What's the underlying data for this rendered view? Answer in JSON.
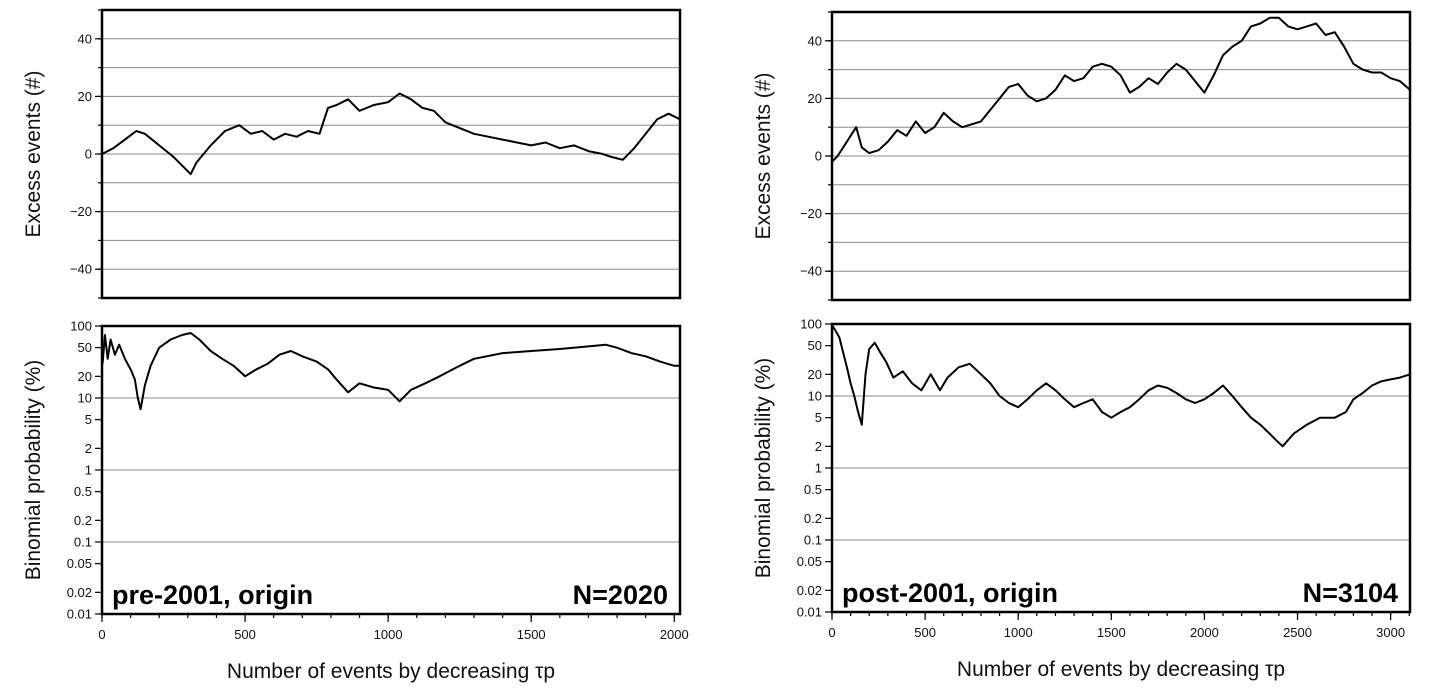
{
  "chart_data": [
    {
      "type": "line",
      "panel": "left-top",
      "ylabel": "Excess events (#)",
      "xlabel": "",
      "xlim": [
        0,
        2020
      ],
      "ylim": [
        -50,
        50
      ],
      "yticks": [
        -40,
        -20,
        0,
        20,
        40
      ],
      "yticklabels": [
        "−40",
        "−20",
        "0",
        "20",
        "40"
      ],
      "yminor_step": 10,
      "grid": true,
      "series": [
        {
          "x": [
            0,
            40,
            80,
            120,
            150,
            200,
            250,
            290,
            310,
            330,
            380,
            430,
            480,
            520,
            560,
            600,
            640,
            680,
            720,
            760,
            790,
            820,
            860,
            900,
            950,
            1000,
            1040,
            1080,
            1120,
            1160,
            1200,
            1250,
            1300,
            1350,
            1400,
            1450,
            1500,
            1550,
            1600,
            1650,
            1700,
            1750,
            1780,
            1820,
            1860,
            1900,
            1940,
            1980,
            2020
          ],
          "values": [
            0,
            2,
            5,
            8,
            7,
            3,
            -1,
            -5,
            -7,
            -3,
            3,
            8,
            10,
            7,
            8,
            5,
            7,
            6,
            8,
            7,
            16,
            17,
            19,
            15,
            17,
            18,
            21,
            19,
            16,
            15,
            11,
            9,
            7,
            6,
            5,
            4,
            3,
            4,
            2,
            3,
            1,
            0,
            -1,
            -2,
            2,
            7,
            12,
            14,
            12
          ]
        }
      ]
    },
    {
      "type": "line",
      "panel": "left-bottom",
      "ylabel": "Binomial probability (%)",
      "xlabel": "Number of events by decreasing τp",
      "xlim": [
        0,
        2020
      ],
      "ylim": [
        0.01,
        100
      ],
      "yscale": "log",
      "yticks": [
        100,
        50,
        20,
        10,
        5,
        2,
        1,
        0.5,
        0.2,
        0.1,
        0.05,
        0.02,
        0.01
      ],
      "yticklabels": [
        "100",
        "50",
        "20",
        "10",
        "5",
        "2",
        "1",
        "0.5",
        "0.2",
        "0.1",
        "0.05",
        "0.02",
        "0.01"
      ],
      "grid_at": [
        100,
        10,
        1,
        0.1,
        0.01
      ],
      "xticks": [
        0,
        500,
        1000,
        1500,
        2000
      ],
      "xticklabels": [
        "0",
        "500",
        "1000",
        "1500",
        "2000"
      ],
      "xminor_step": 100,
      "annotations": [
        "pre-2001, origin",
        "N=2020"
      ],
      "series": [
        {
          "x": [
            2,
            10,
            20,
            30,
            45,
            60,
            80,
            100,
            115,
            125,
            135,
            150,
            170,
            200,
            240,
            280,
            310,
            340,
            380,
            420,
            460,
            500,
            540,
            580,
            620,
            660,
            700,
            750,
            790,
            820,
            860,
            900,
            950,
            1000,
            1040,
            1080,
            1130,
            1180,
            1250,
            1300,
            1400,
            1500,
            1600,
            1700,
            1760,
            1800,
            1850,
            1900,
            1950,
            2000,
            2020
          ],
          "values": [
            30,
            75,
            35,
            65,
            40,
            55,
            35,
            25,
            18,
            10,
            7,
            15,
            28,
            50,
            65,
            75,
            80,
            65,
            45,
            35,
            28,
            20,
            25,
            30,
            40,
            45,
            38,
            32,
            25,
            18,
            12,
            16,
            14,
            13,
            9,
            13,
            16,
            20,
            28,
            35,
            42,
            45,
            48,
            52,
            55,
            50,
            42,
            38,
            32,
            28,
            28
          ]
        }
      ]
    },
    {
      "type": "line",
      "panel": "right-top",
      "ylabel": "Excess events (#)",
      "xlabel": "",
      "xlim": [
        0,
        3104
      ],
      "ylim": [
        -50,
        50
      ],
      "yticks": [
        -40,
        -20,
        0,
        20,
        40
      ],
      "yticklabels": [
        "−40",
        "−20",
        "0",
        "20",
        "40"
      ],
      "yminor_step": 10,
      "grid": true,
      "series": [
        {
          "x": [
            0,
            30,
            60,
            100,
            130,
            160,
            200,
            250,
            300,
            350,
            400,
            450,
            500,
            550,
            600,
            650,
            700,
            750,
            800,
            850,
            900,
            950,
            1000,
            1050,
            1100,
            1150,
            1200,
            1250,
            1300,
            1350,
            1400,
            1450,
            1500,
            1550,
            1600,
            1650,
            1700,
            1750,
            1800,
            1850,
            1900,
            1950,
            2000,
            2050,
            2100,
            2150,
            2200,
            2250,
            2300,
            2350,
            2400,
            2450,
            2500,
            2550,
            2600,
            2650,
            2700,
            2750,
            2800,
            2850,
            2900,
            2950,
            3000,
            3050,
            3104
          ],
          "values": [
            -2,
            0,
            3,
            7,
            10,
            3,
            1,
            2,
            5,
            9,
            7,
            12,
            8,
            10,
            15,
            12,
            10,
            11,
            12,
            16,
            20,
            24,
            25,
            21,
            19,
            20,
            23,
            28,
            26,
            27,
            31,
            32,
            31,
            28,
            22,
            24,
            27,
            25,
            29,
            32,
            30,
            26,
            22,
            28,
            35,
            38,
            40,
            45,
            46,
            48,
            48,
            45,
            44,
            45,
            46,
            42,
            43,
            38,
            32,
            30,
            29,
            29,
            27,
            26,
            23
          ]
        }
      ]
    },
    {
      "type": "line",
      "panel": "right-bottom",
      "ylabel": "Binomial probability (%)",
      "xlabel": "Number of events by decreasing τp",
      "xlim": [
        0,
        3104
      ],
      "ylim": [
        0.01,
        100
      ],
      "yscale": "log",
      "yticks": [
        100,
        50,
        20,
        10,
        5,
        2,
        1,
        0.5,
        0.2,
        0.1,
        0.05,
        0.02,
        0.01
      ],
      "yticklabels": [
        "100",
        "50",
        "20",
        "10",
        "5",
        "2",
        "1",
        "0.5",
        "0.2",
        "0.1",
        "0.05",
        "0.02",
        "0.01"
      ],
      "grid_at": [
        100,
        10,
        1,
        0.1,
        0.01
      ],
      "xticks": [
        0,
        500,
        1000,
        1500,
        2000,
        2500,
        3000
      ],
      "xticklabels": [
        "0",
        "500",
        "1000",
        "1500",
        "2000",
        "2500",
        "3000"
      ],
      "xminor_step": 100,
      "annotations": [
        "post-2001, origin",
        "N=3104"
      ],
      "series": [
        {
          "x": [
            2,
            20,
            40,
            60,
            80,
            100,
            120,
            140,
            160,
            180,
            200,
            230,
            260,
            290,
            330,
            380,
            430,
            480,
            530,
            580,
            620,
            680,
            740,
            800,
            850,
            900,
            950,
            1000,
            1050,
            1100,
            1150,
            1200,
            1250,
            1300,
            1350,
            1400,
            1450,
            1500,
            1550,
            1600,
            1650,
            1700,
            1750,
            1800,
            1850,
            1900,
            1950,
            2000,
            2050,
            2100,
            2150,
            2200,
            2250,
            2300,
            2350,
            2380,
            2420,
            2480,
            2550,
            2620,
            2700,
            2760,
            2800,
            2850,
            2900,
            2950,
            3000,
            3050,
            3104
          ],
          "values": [
            95,
            80,
            65,
            40,
            25,
            15,
            10,
            6,
            4,
            20,
            45,
            55,
            40,
            30,
            18,
            22,
            15,
            12,
            20,
            12,
            18,
            25,
            28,
            20,
            15,
            10,
            8,
            7,
            9,
            12,
            15,
            12,
            9,
            7,
            8,
            9,
            6,
            5,
            6,
            7,
            9,
            12,
            14,
            13,
            11,
            9,
            8,
            9,
            11,
            14,
            10,
            7,
            5,
            4,
            3,
            2.5,
            2,
            3,
            4,
            5,
            5,
            6,
            9,
            11,
            14,
            16,
            17,
            18,
            20
          ]
        }
      ]
    }
  ]
}
